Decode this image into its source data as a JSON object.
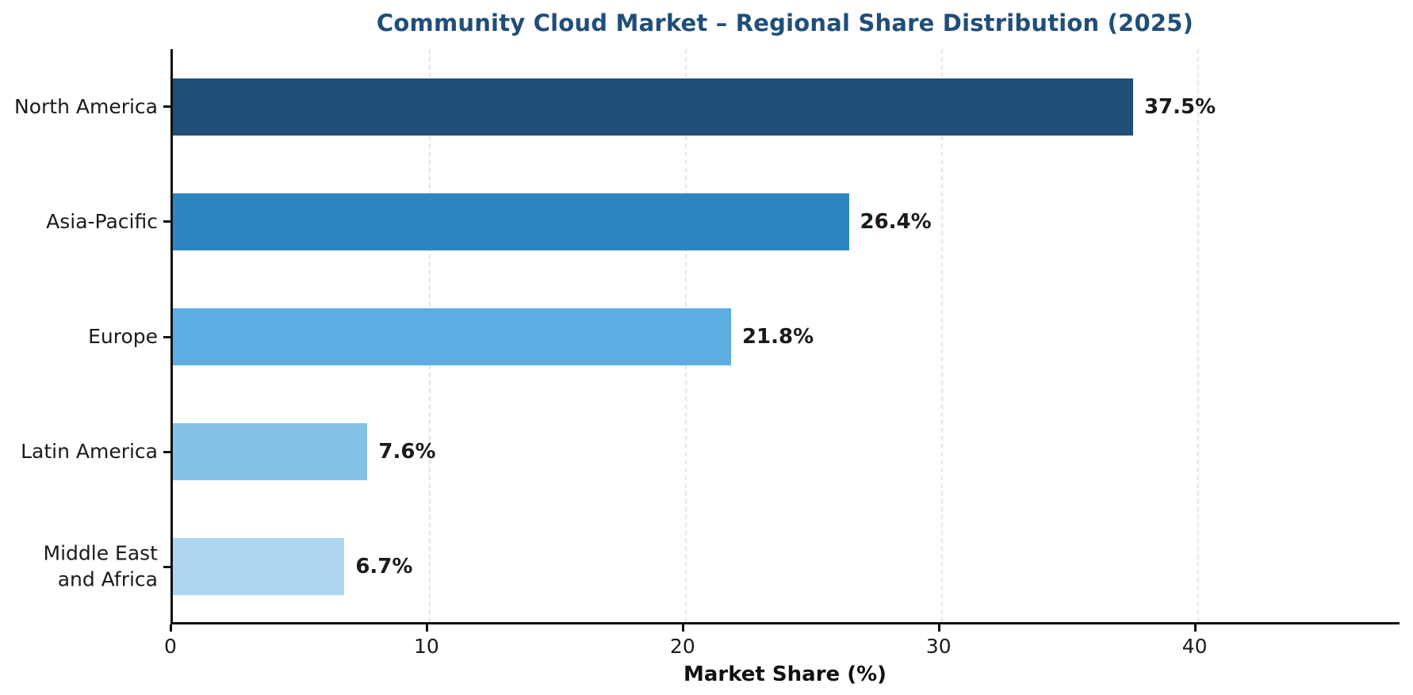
{
  "chart_data": {
    "type": "bar",
    "orientation": "horizontal",
    "title": "Community Cloud Market – Regional Share Distribution (2025)",
    "title_color": "#1f4e79",
    "categories": [
      "North America",
      "Asia-Pacific",
      "Europe",
      "Latin America",
      "Middle East\nand Africa"
    ],
    "values": [
      37.5,
      26.4,
      21.8,
      7.6,
      6.7
    ],
    "value_labels": [
      "37.5%",
      "26.4%",
      "21.8%",
      "7.6%",
      "6.7%"
    ],
    "bar_colors": [
      "#1f4e79",
      "#2e86c1",
      "#5dade2",
      "#85c1e9",
      "#aed6f1"
    ],
    "xlabel": "Market Share (%)",
    "ylabel": "",
    "xlim": [
      0,
      48
    ],
    "xticks": [
      0,
      10,
      20,
      30,
      40
    ],
    "grid": true,
    "legend": false
  }
}
